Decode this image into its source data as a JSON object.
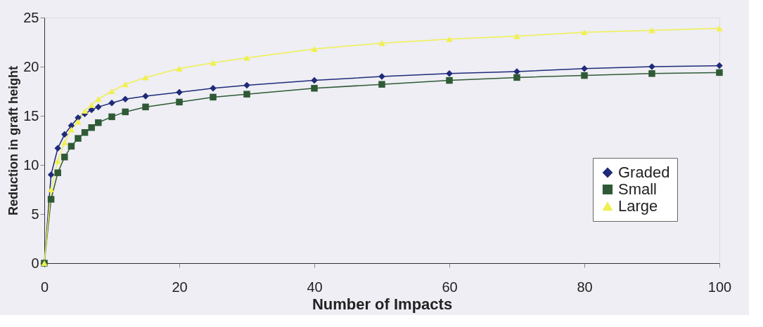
{
  "chart_data": {
    "type": "line",
    "xlabel": "Number of Impacts",
    "ylabel": "Reduction in graft height",
    "x": [
      0,
      1,
      2,
      3,
      4,
      5,
      6,
      7,
      8,
      10,
      12,
      15,
      20,
      25,
      30,
      40,
      50,
      60,
      70,
      80,
      90,
      100
    ],
    "series": [
      {
        "name": "Graded",
        "color": "#1f2a7a",
        "marker": "diamond",
        "values": [
          0,
          9,
          11.7,
          13.1,
          14,
          14.8,
          15.2,
          15.6,
          15.9,
          16.3,
          16.7,
          17,
          17.4,
          17.8,
          18.1,
          18.6,
          19,
          19.3,
          19.5,
          19.8,
          20,
          20.1
        ]
      },
      {
        "name": "Small",
        "color": "#2f5a35",
        "marker": "square",
        "values": [
          0,
          6.5,
          9.2,
          10.8,
          11.9,
          12.7,
          13.3,
          13.8,
          14.3,
          14.9,
          15.4,
          15.9,
          16.4,
          16.9,
          17.2,
          17.8,
          18.2,
          18.6,
          18.9,
          19.1,
          19.3,
          19.4
        ]
      },
      {
        "name": "Large",
        "color": "#f0f050",
        "marker": "triangle",
        "values": [
          0,
          7.5,
          10.4,
          12.3,
          13.6,
          14.4,
          15.5,
          16.1,
          16.7,
          17.5,
          18.2,
          18.9,
          19.8,
          20.4,
          20.9,
          21.8,
          22.4,
          22.8,
          23.1,
          23.5,
          23.7,
          23.9
        ]
      }
    ],
    "xlim": [
      0,
      100
    ],
    "xticks": [
      0,
      20,
      40,
      60,
      80,
      100
    ],
    "ylim": [
      0,
      25
    ],
    "yticks": [
      0,
      5,
      10,
      15,
      20,
      25
    ],
    "grid": false,
    "legend": "bottom right",
    "line_style": "solid"
  }
}
